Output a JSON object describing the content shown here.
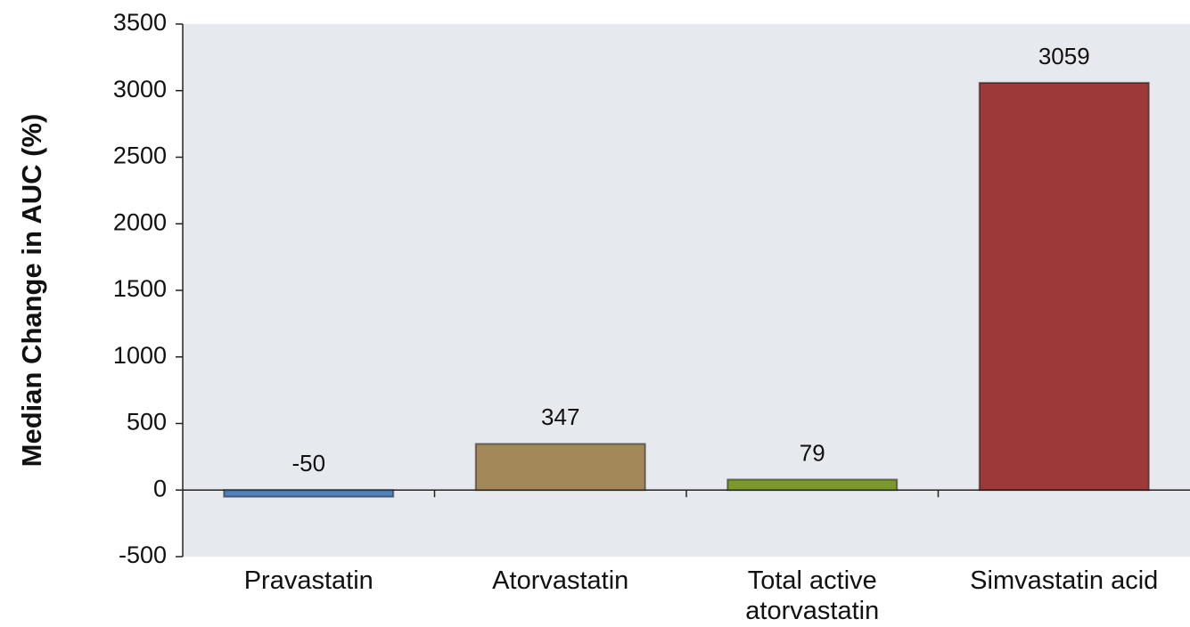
{
  "chart_data": {
    "type": "bar",
    "y_label": "Median Change in AUC (%)",
    "categories": [
      "Pravastatin",
      "Atorvastatin",
      "Total active atorvastatin",
      "Simvastatin acid"
    ],
    "values": [
      -50,
      347,
      79,
      3059
    ],
    "colors": [
      "#4f81bd",
      "#a3885a",
      "#7c9a2c",
      "#9c3a3a"
    ],
    "ylim": [
      -500,
      3500
    ],
    "yticks": [
      -500,
      0,
      500,
      1000,
      1500,
      2000,
      2500,
      3000,
      3500
    ],
    "grid": false
  }
}
